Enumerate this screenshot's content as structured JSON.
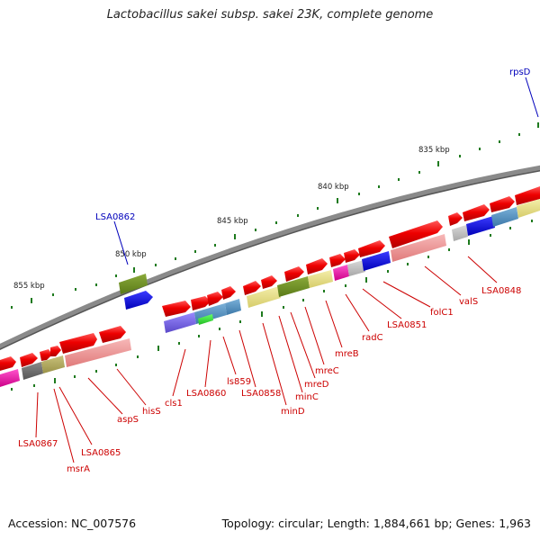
{
  "title": "Lactobacillus sakei subsp. sakei 23K, complete genome",
  "footer": {
    "accession": "Accession: NC_007576",
    "topology": "Topology: circular; Length: 1,884,661 bp; Genes: 1,963"
  },
  "colors": {
    "backbone": "#8a8a8a",
    "tick": "#1e7a1e",
    "label_red": "#cc0000",
    "label_blue": "#0000bb"
  },
  "scale_labels": [
    "835 kbp",
    "840 kbp",
    "845 kbp",
    "850 kbp",
    "855 kbp"
  ],
  "gene_labels": {
    "blue": [
      "rpsD",
      "LSA0862"
    ],
    "red": [
      "LSA0848",
      "valS",
      "folC1",
      "LSA0851",
      "radC",
      "mreB",
      "mreC",
      "mreD",
      "minC",
      "minD",
      "LSA0858",
      "ls859",
      "LSA0860",
      "cls1",
      "hisS",
      "aspS",
      "LSA0865",
      "msrA",
      "LSA0867"
    ]
  },
  "legend_icons": [
    "gene-arrow",
    "cog-color-box"
  ]
}
